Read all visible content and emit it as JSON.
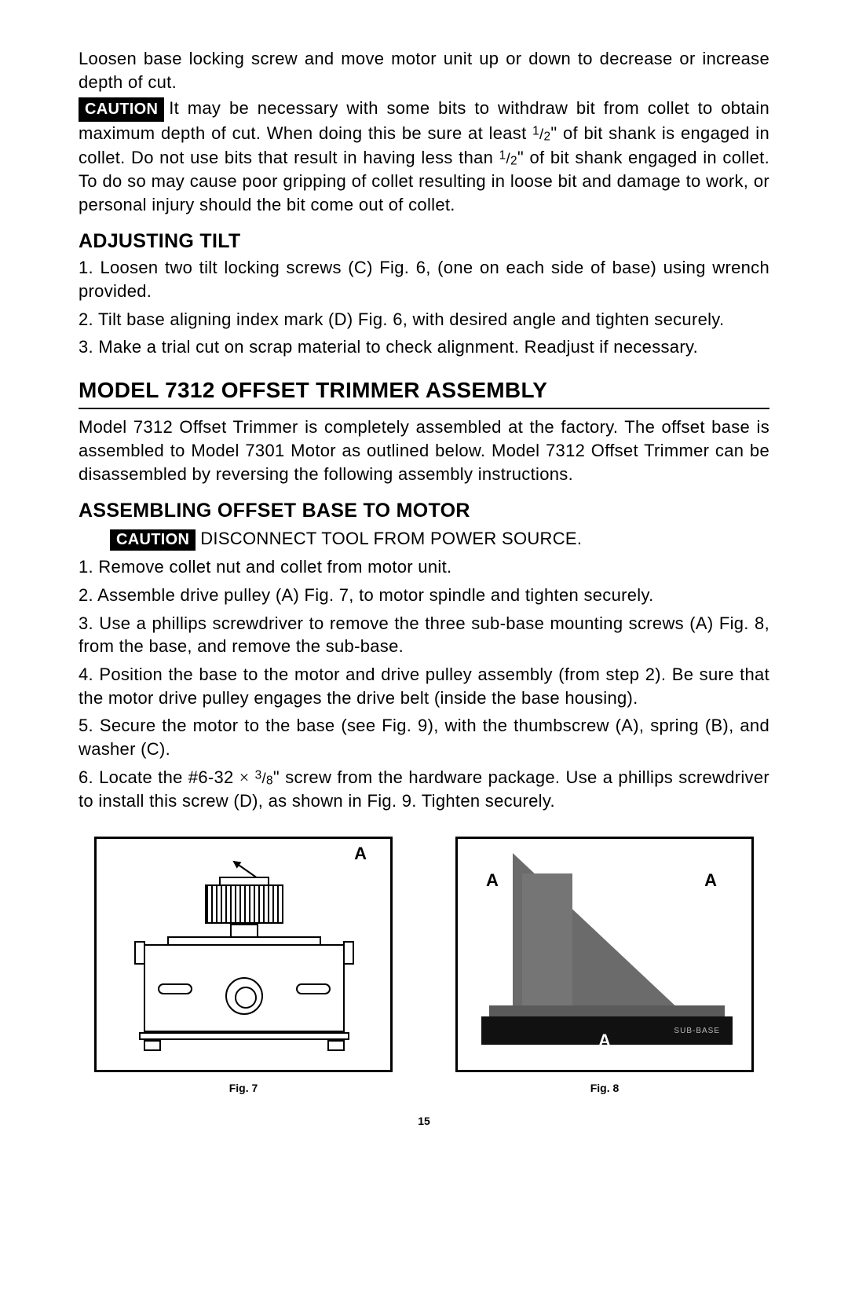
{
  "intro": {
    "p1": "Loosen base locking screw and move motor unit up or down to decrease or increase depth of cut.",
    "caution_label": "CAUTION",
    "p2_a": "It may be necessary with some bits to withdraw bit from collet to obtain maximum depth of cut. When doing this be sure at least ",
    "p2_b": "\" of bit shank is engaged in collet. Do not use bits that result in having less than ",
    "p2_c": "\" of bit shank engaged in collet. To do so may cause poor gripping of collet resulting in loose bit and damage to work, or personal injury should the bit come out of collet.",
    "half_num": "1",
    "half_den": "2"
  },
  "adjusting_tilt": {
    "heading": "ADJUSTING TILT",
    "s1": "1.  Loosen two tilt locking screws (C) Fig. 6, (one on each side of base) using wrench provided.",
    "s2": "2.  Tilt base aligning index mark (D) Fig. 6, with desired angle and tighten securely.",
    "s3": "3.  Make a trial cut on scrap material to check alignment. Readjust if necessary."
  },
  "model7312": {
    "heading": "MODEL 7312 OFFSET TRIMMER ASSEMBLY",
    "p1": "Model 7312 Offset Trimmer is completely assembled at the factory. The offset base is assembled to Model 7301 Motor as outlined below. Model 7312 Offset Trimmer can be disassembled by reversing the following assembly instructions."
  },
  "assembling": {
    "heading": "ASSEMBLING OFFSET BASE TO MOTOR",
    "caution_label": "CAUTION",
    "caution_text": "DISCONNECT TOOL FROM POWER SOURCE.",
    "s1": "1.   Remove collet nut and collet from motor unit.",
    "s2": "2.   Assemble drive pulley (A) Fig. 7, to motor spindle and tighten securely.",
    "s3": "3.  Use a phillips screwdriver to remove the three sub-base mounting screws (A) Fig. 8, from the base, and remove the sub-base.",
    "s4": "4.  Position the base to the motor and drive pulley assembly (from step 2). Be sure that the motor drive pulley engages the drive belt (inside the base housing).",
    "s5": "5.  Secure the motor to the base (see Fig. 9), with the thumbscrew (A), spring (B), and washer (C).",
    "s6_a": "6.   Locate the #6-32 ",
    "s6_times": "×",
    "s6_frac_num": "3",
    "s6_frac_den": "8",
    "s6_b": "\" screw from the hardware package. Use a phillips screwdriver to install this screw (D), as shown in Fig. 9. Tighten securely."
  },
  "figures": {
    "fig7": {
      "label": "A",
      "caption": "Fig. 7"
    },
    "fig8": {
      "label_l": "A",
      "label_r": "A",
      "label_b": "A",
      "subbase": "SUB-BASE",
      "caption": "Fig. 8"
    }
  },
  "page_number": "15"
}
